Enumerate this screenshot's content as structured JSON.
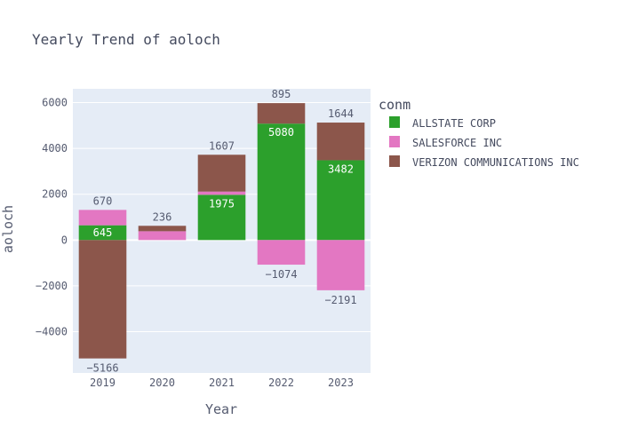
{
  "chart_data": {
    "type": "bar",
    "barmode": "relative",
    "title": "Yearly Trend of aoloch",
    "xlabel": "Year",
    "ylabel": "aoloch",
    "categories": [
      "2019",
      "2020",
      "2021",
      "2022",
      "2023"
    ],
    "ylim": [
      -5800,
      6600
    ],
    "yticks": [
      6000,
      4000,
      2000,
      0,
      -2000,
      -4000
    ],
    "ytick_labels": [
      "6000",
      "4000",
      "2000",
      "0",
      "−2000",
      "−4000"
    ],
    "grid": true,
    "legend": {
      "title": "conm",
      "position": "right",
      "entries": [
        "ALLSTATE CORP",
        "SALESFORCE INC",
        "VERIZON COMMUNICATIONS INC"
      ]
    },
    "series": [
      {
        "name": "ALLSTATE CORP",
        "color": "#2ca02c",
        "values": [
          645,
          null,
          1975,
          5080,
          3482
        ],
        "labels": [
          "645",
          "",
          "1975",
          "5080",
          "3482"
        ],
        "label_pos": [
          "inside",
          "none",
          "inside",
          "inside",
          "inside"
        ]
      },
      {
        "name": "SALESFORCE INC",
        "color": "#e377c2",
        "values": [
          670,
          385,
          140,
          -1074,
          -2191
        ],
        "labels": [
          "670",
          "",
          "",
          "−1074",
          "−2191"
        ],
        "label_pos": [
          "outside",
          "none",
          "none",
          "outside",
          "outside"
        ]
      },
      {
        "name": "VERIZON COMMUNICATIONS INC",
        "color": "#8c564b",
        "values": [
          -5166,
          236,
          1607,
          895,
          1644
        ],
        "labels": [
          "−5166",
          "236",
          "1607",
          "895",
          "1644"
        ],
        "label_pos": [
          "outside",
          "outside",
          "outside",
          "outside",
          "outside"
        ]
      }
    ]
  }
}
